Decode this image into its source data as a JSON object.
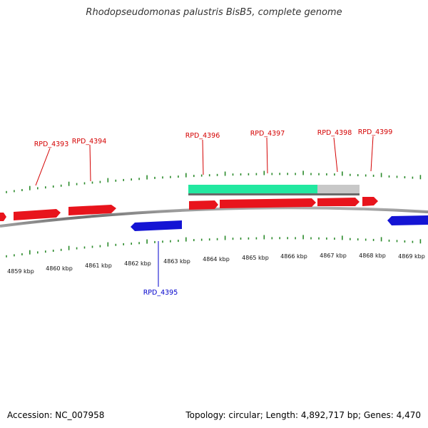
{
  "title": "Rhodopseudomonas palustris BisB5, complete genome",
  "footer": {
    "accession": "Accession: NC_007958",
    "topology": "Topology: circular; Length: 4,892,717 bp; Genes: 4,470"
  },
  "colors": {
    "forward_gene": "#e8141c",
    "reverse_gene": "#1414d4",
    "backbone": "#808080",
    "ticks": "#2a8a2a",
    "coverage_filled": "#22e8a0",
    "coverage_empty": "#c8c8c8"
  },
  "kbp_labels": [
    "4859 kbp",
    "4860 kbp",
    "4861 kbp",
    "4862 kbp",
    "4863 kbp",
    "4864 kbp",
    "4865 kbp",
    "4866 kbp",
    "4867 kbp",
    "4868 kbp",
    "4869 kbp"
  ],
  "gene_labels": {
    "forward": [
      "RPD_4393",
      "RPD_4394",
      "RPD_4396",
      "RPD_4397",
      "RPD_4398",
      "RPD_4399"
    ],
    "reverse": [
      "RPD_4395"
    ]
  }
}
